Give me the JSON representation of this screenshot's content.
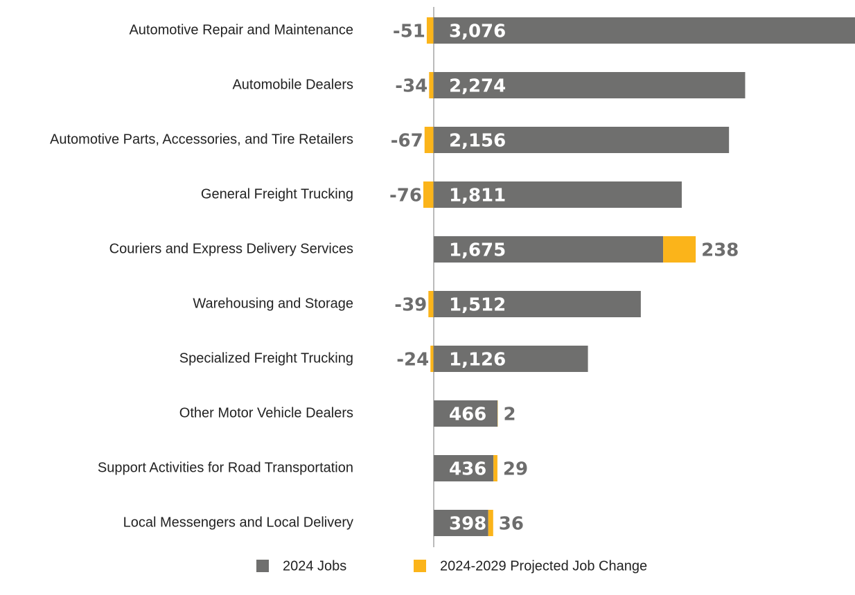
{
  "chart_data": {
    "type": "bar",
    "orientation": "horizontal",
    "categories": [
      "Automotive Repair and Maintenance",
      "Automobile Dealers",
      "Automotive Parts, Accessories, and Tire Retailers",
      "General Freight Trucking",
      "Couriers and Express Delivery Services",
      "Warehousing and Storage",
      "Specialized Freight Trucking",
      "Other Motor Vehicle Dealers",
      "Support Activities for Road Transportation",
      "Local Messengers and Local Delivery"
    ],
    "series": [
      {
        "name": "2024 Jobs",
        "color": "#6f6f6e",
        "values": [
          3076,
          2274,
          2156,
          1811,
          1675,
          1512,
          1126,
          466,
          436,
          398
        ],
        "value_labels": [
          "3,076",
          "2,274",
          "2,156",
          "1,811",
          "1,675",
          "1,512",
          "1,126",
          "466",
          "436",
          "398"
        ]
      },
      {
        "name": "2024-2029 Projected Job Change",
        "color": "#fbb41a",
        "values": [
          -51,
          -34,
          -67,
          -76,
          238,
          -39,
          -24,
          2,
          29,
          36
        ]
      }
    ],
    "xlim": [
      0,
      3076
    ]
  }
}
